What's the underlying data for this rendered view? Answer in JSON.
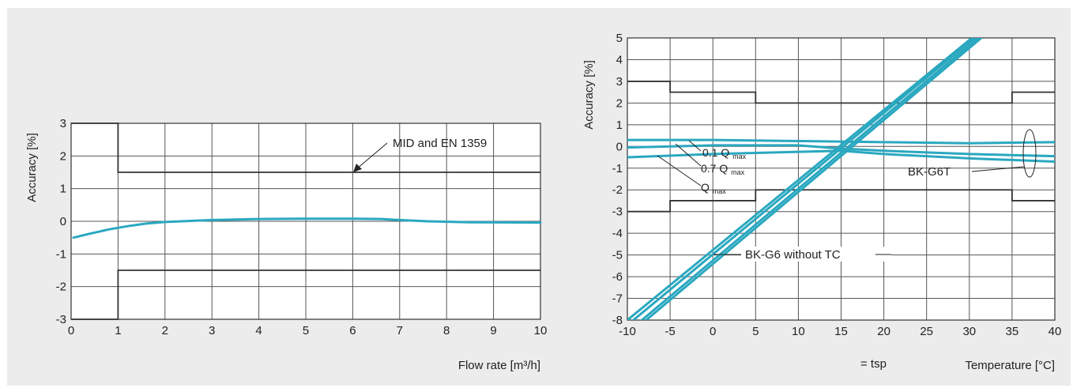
{
  "chart_data": [
    {
      "type": "line",
      "xlabel": "Flow rate [m³/h]",
      "ylabel": "Accuracy [%]",
      "xlim": [
        0,
        10
      ],
      "ylim": [
        -3,
        3
      ],
      "xticks": [
        "0",
        "1",
        "2",
        "3",
        "4",
        "5",
        "6",
        "7",
        "8",
        "9",
        "10"
      ],
      "yticks": [
        "-3",
        "-2",
        "-1",
        "0",
        "1",
        "2",
        "3"
      ],
      "grid": true,
      "limit_lines": {
        "upper": [
          [
            0,
            3
          ],
          [
            1,
            3
          ],
          [
            1,
            1.5
          ],
          [
            10,
            1.5
          ]
        ],
        "lower": [
          [
            0,
            -3
          ],
          [
            1,
            -3
          ],
          [
            1,
            -1.5
          ],
          [
            10,
            -1.5
          ]
        ]
      },
      "series": [
        {
          "color": "#2aa8c0",
          "points": [
            [
              0.05,
              -0.5
            ],
            [
              0.4,
              -0.38
            ],
            [
              0.8,
              -0.25
            ],
            [
              1.2,
              -0.15
            ],
            [
              1.6,
              -0.07
            ],
            [
              2.0,
              -0.02
            ],
            [
              2.5,
              0.01
            ],
            [
              3.0,
              0.04
            ],
            [
              4.0,
              0.07
            ],
            [
              5.0,
              0.08
            ],
            [
              6.0,
              0.08
            ],
            [
              6.6,
              0.07
            ],
            [
              7.0,
              0.04
            ],
            [
              7.6,
              0.0
            ],
            [
              8.5,
              -0.03
            ],
            [
              10.0,
              -0.04
            ]
          ]
        }
      ],
      "annotations": [
        {
          "text": "MID and EN 1359",
          "x": 6.0,
          "y": 1.5
        }
      ]
    },
    {
      "type": "line",
      "xlabel": "Temperature [°C]",
      "ylabel": "Accuracy [%]",
      "extra_label": "= tsp",
      "xlim": [
        -10,
        40
      ],
      "ylim": [
        -8,
        5
      ],
      "xticks": [
        "-10",
        "-5",
        "0",
        "5",
        "10",
        "15",
        "20",
        "25",
        "30",
        "35",
        "40"
      ],
      "yticks": [
        "-8",
        "-7",
        "-6",
        "-5",
        "-4",
        "-3",
        "-2",
        "-1",
        "0",
        "1",
        "2",
        "3",
        "4",
        "5"
      ],
      "grid": true,
      "limit_lines": {
        "upper": [
          [
            -10,
            3
          ],
          [
            -5,
            3
          ],
          [
            -5,
            2.5
          ],
          [
            5,
            2.5
          ],
          [
            5,
            2
          ],
          [
            35,
            2
          ],
          [
            35,
            2.5
          ],
          [
            40,
            2.5
          ]
        ],
        "lower": [
          [
            -10,
            -3
          ],
          [
            -5,
            -3
          ],
          [
            -5,
            -2.5
          ],
          [
            5,
            -2.5
          ],
          [
            5,
            -2
          ],
          [
            35,
            -2
          ],
          [
            35,
            -2.5
          ],
          [
            40,
            -2.5
          ]
        ]
      },
      "series": [
        {
          "group": "BK-G6 without TC",
          "color": "#2aa8c0",
          "points": [
            [
              -10,
              -8.0
            ],
            [
              30.3,
              5.0
            ]
          ]
        },
        {
          "group": "BK-G6 without TC",
          "color": "#2aa8c0",
          "points": [
            [
              -9.3,
              -8.0
            ],
            [
              30.6,
              5.0
            ]
          ]
        },
        {
          "group": "BK-G6 without TC",
          "color": "#2aa8c0",
          "points": [
            [
              -8.3,
              -8.0
            ],
            [
              31.0,
              5.0
            ]
          ]
        },
        {
          "group": "BK-G6 without TC",
          "color": "#2aa8c0",
          "points": [
            [
              -7.8,
              -8.0
            ],
            [
              31.4,
              5.0
            ]
          ]
        },
        {
          "group": "BK-G6T",
          "label": "0.1 Q",
          "label_sub": "max",
          "color": "#2aa8c0",
          "points": [
            [
              -10,
              0.3
            ],
            [
              0,
              0.3
            ],
            [
              10,
              0.25
            ],
            [
              20,
              0.2
            ],
            [
              30,
              0.15
            ],
            [
              40,
              0.2
            ]
          ]
        },
        {
          "group": "BK-G6T",
          "label": "0.7 Q",
          "label_sub": "max",
          "color": "#2aa8c0",
          "points": [
            [
              -10,
              -0.05
            ],
            [
              0,
              0.05
            ],
            [
              10,
              0.05
            ],
            [
              15,
              -0.1
            ],
            [
              20,
              -0.2
            ],
            [
              30,
              -0.35
            ],
            [
              40,
              -0.45
            ]
          ]
        },
        {
          "group": "BK-G6T",
          "label": "Q",
          "label_sub": "max",
          "color": "#2aa8c0",
          "points": [
            [
              -10,
              -0.5
            ],
            [
              0,
              -0.35
            ],
            [
              10,
              -0.25
            ],
            [
              15,
              -0.2
            ],
            [
              20,
              -0.35
            ],
            [
              30,
              -0.55
            ],
            [
              40,
              -0.7
            ]
          ]
        }
      ],
      "annotations": [
        {
          "text": "BK-G6T"
        },
        {
          "text": "BK-G6 without TC"
        }
      ]
    }
  ]
}
